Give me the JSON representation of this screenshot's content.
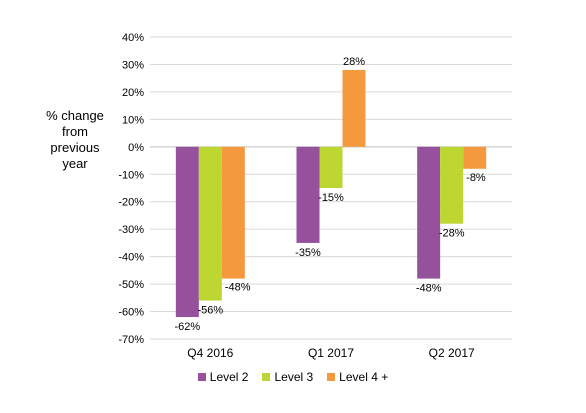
{
  "chart_data": {
    "type": "bar",
    "title": "",
    "xlabel": "",
    "ylabel": "% change from previous year",
    "categories": [
      "Q4 2016",
      "Q1 2017",
      "Q2 2017"
    ],
    "series": [
      {
        "name": "Level 2",
        "color": "#95519b",
        "values": [
          -62,
          -35,
          -48
        ],
        "labels": [
          "-62%",
          "-35%",
          "-48%"
        ]
      },
      {
        "name": "Level 3",
        "color": "#bdd631",
        "values": [
          -56,
          -15,
          -28
        ],
        "labels": [
          "-56%",
          "-15%",
          "-28%"
        ]
      },
      {
        "name": "Level 4 +",
        "color": "#f5993e",
        "values": [
          -48,
          28,
          -8
        ],
        "labels": [
          "-48%",
          "28%",
          "-8%"
        ]
      }
    ],
    "ylim": [
      -70,
      40
    ],
    "yticks": [
      40,
      30,
      20,
      10,
      0,
      -10,
      -20,
      -30,
      -40,
      -50,
      -60,
      -70
    ],
    "ytick_labels": [
      "40%",
      "30%",
      "20%",
      "10%",
      "0%",
      "-10%",
      "-20%",
      "-30%",
      "-40%",
      "-50%",
      "-60%",
      "-70%"
    ],
    "grid": true,
    "legend_position": "bottom"
  }
}
